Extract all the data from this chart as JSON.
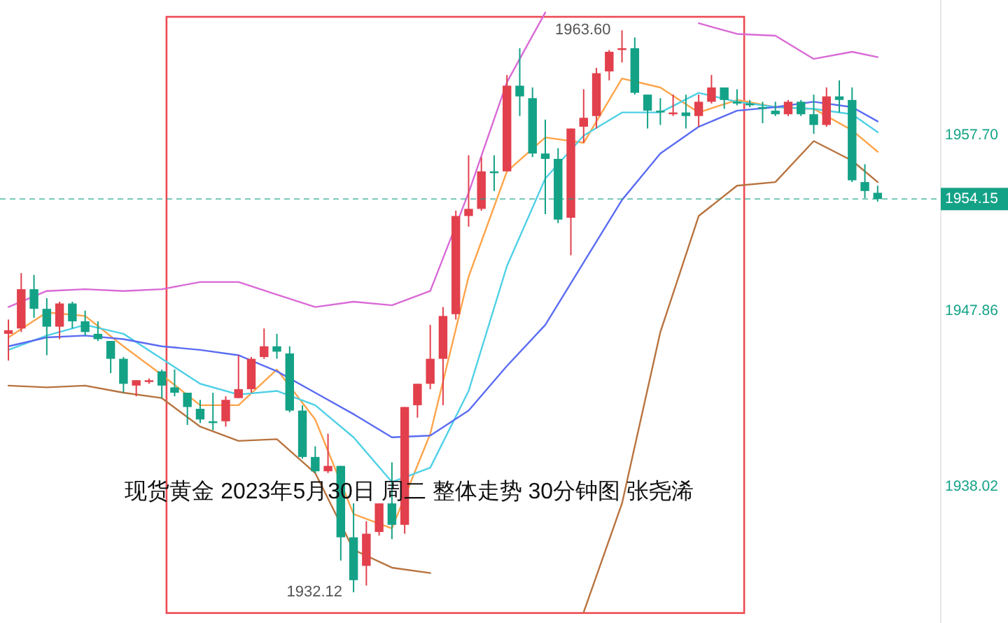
{
  "chart_data": {
    "type": "candlestick",
    "categories": [
      null,
      null,
      null,
      null,
      null,
      null,
      null,
      null,
      null,
      null,
      null,
      null,
      null,
      null,
      null,
      null,
      null,
      null,
      null,
      null,
      null,
      null,
      null,
      null,
      null,
      null,
      null,
      null,
      null,
      null,
      null,
      null,
      null,
      null,
      null,
      null,
      null,
      null,
      null,
      null,
      null,
      null,
      null,
      null,
      null,
      null,
      null,
      null,
      null,
      null,
      null,
      null,
      null,
      null,
      null,
      null,
      null,
      null,
      null,
      null,
      null,
      null,
      null,
      null,
      null,
      null,
      null,
      null,
      null
    ],
    "ohlc": [
      [
        1946.6,
        1947.4,
        1945.1,
        1946.8
      ],
      [
        1946.9,
        1950.0,
        1946.7,
        1949.1
      ],
      [
        1949.1,
        1949.9,
        1947.5,
        1948.0
      ],
      [
        1948.0,
        1948.6,
        1945.4,
        1947.0
      ],
      [
        1947.0,
        1948.4,
        1946.3,
        1948.3
      ],
      [
        1948.3,
        1948.4,
        1946.9,
        1947.3
      ],
      [
        1947.3,
        1947.9,
        1946.5,
        1946.7
      ],
      [
        1946.6,
        1947.3,
        1946.2,
        1946.3
      ],
      [
        1946.2,
        1946.2,
        1944.4,
        1945.2
      ],
      [
        1945.2,
        1945.3,
        1943.3,
        1943.8
      ],
      [
        1943.7,
        1944.0,
        1943.1,
        1944.0
      ],
      [
        1943.9,
        1944.1,
        1943.8,
        1944.0
      ],
      [
        1944.5,
        1944.6,
        1943.0,
        1943.7
      ],
      [
        1943.6,
        1944.6,
        1943.1,
        1943.3
      ],
      [
        1943.3,
        1943.3,
        1941.5,
        1942.5
      ],
      [
        1942.4,
        1942.9,
        1941.6,
        1941.8
      ],
      [
        1941.7,
        1943.3,
        1941.2,
        1941.6
      ],
      [
        1941.7,
        1943.1,
        1941.4,
        1942.9
      ],
      [
        1943.0,
        1945.4,
        1943.0,
        1943.5
      ],
      [
        1943.5,
        1945.3,
        1943.3,
        1945.2
      ],
      [
        1945.3,
        1946.9,
        1945.2,
        1945.9
      ],
      [
        1945.9,
        1946.6,
        1945.2,
        1945.6
      ],
      [
        1945.5,
        1945.9,
        1942.2,
        1942.3
      ],
      [
        1942.3,
        1942.6,
        1939.6,
        1939.7
      ],
      [
        1939.7,
        1940.3,
        1938.8,
        1938.9
      ],
      [
        1938.9,
        1941.0,
        1938.8,
        1939.2
      ],
      [
        1939.2,
        1939.2,
        1933.9,
        1935.2
      ],
      [
        1935.2,
        1937.1,
        1932.12,
        1932.8
      ],
      [
        1933.6,
        1936.1,
        1932.5,
        1935.4
      ],
      [
        1935.5,
        1937.1,
        1935.3,
        1937.1
      ],
      [
        1937.1,
        1939.4,
        1935.1,
        1935.9
      ],
      [
        1935.9,
        1942.5,
        1935.4,
        1942.5
      ],
      [
        1942.6,
        1943.8,
        1941.9,
        1943.8
      ],
      [
        1943.8,
        1947.1,
        1943.5,
        1945.2
      ],
      [
        1945.2,
        1948.1,
        1942.6,
        1947.6
      ],
      [
        1947.7,
        1953.5,
        1947.4,
        1953.2
      ],
      [
        1953.2,
        1956.6,
        1952.6,
        1953.6
      ],
      [
        1953.6,
        1956.5,
        1953.5,
        1955.7
      ],
      [
        1955.7,
        1956.6,
        1954.6,
        1955.6
      ],
      [
        1955.7,
        1961.1,
        1955.7,
        1960.5
      ],
      [
        1960.5,
        1962.6,
        1958.8,
        1959.9
      ],
      [
        1959.8,
        1960.4,
        1956.5,
        1956.7
      ],
      [
        1956.7,
        1958.6,
        1953.3,
        1956.4
      ],
      [
        1956.4,
        1957.0,
        1952.8,
        1953.0
      ],
      [
        1953.1,
        1958.1,
        1951.0,
        1958.1
      ],
      [
        1958.2,
        1960.3,
        1957.3,
        1958.7
      ],
      [
        1958.8,
        1961.5,
        1958.1,
        1961.2
      ],
      [
        1961.3,
        1962.5,
        1960.8,
        1962.4
      ],
      [
        1962.5,
        1963.6,
        1961.8,
        1962.6
      ],
      [
        1962.6,
        1963.2,
        1960.0,
        1960.1
      ],
      [
        1960.0,
        1960.0,
        1958.1,
        1959.1
      ],
      [
        1959.1,
        1959.8,
        1958.3,
        1959.0
      ],
      [
        1958.9,
        1960.0,
        1958.8,
        1959.0
      ],
      [
        1959.0,
        1960.0,
        1958.1,
        1958.8
      ],
      [
        1958.8,
        1960.0,
        1958.2,
        1959.6
      ],
      [
        1959.6,
        1961.1,
        1959.5,
        1960.4
      ],
      [
        1960.4,
        1960.4,
        1959.2,
        1959.7
      ],
      [
        1959.6,
        1960.3,
        1959.4,
        1959.5
      ],
      [
        1959.5,
        1959.7,
        1959.3,
        1959.4
      ],
      [
        1959.3,
        1959.6,
        1958.4,
        1959.2
      ],
      [
        1959.1,
        1959.6,
        1958.8,
        1958.9
      ],
      [
        1958.9,
        1959.7,
        1958.8,
        1959.6
      ],
      [
        1959.6,
        1959.7,
        1958.8,
        1958.9
      ],
      [
        1958.9,
        1960.0,
        1957.8,
        1958.3
      ],
      [
        1958.3,
        1960.4,
        1958.2,
        1959.9
      ],
      [
        1959.9,
        1960.8,
        1959.0,
        1959.7
      ],
      [
        1959.7,
        1960.4,
        1955.1,
        1955.2
      ],
      [
        1955.1,
        1956.1,
        1954.2,
        1954.6
      ],
      [
        1954.5,
        1954.9,
        1954.0,
        1954.15
      ]
    ],
    "colors": [
      "#e2404c",
      "#e2404c",
      "#14a287",
      "#14a287",
      "#e2404c",
      "#14a287",
      "#14a287",
      "#14a287",
      "#14a287",
      "#14a287",
      "#e2404c",
      "#e2404c",
      "#14a287",
      "#14a287",
      "#14a287",
      "#14a287",
      "#14a287",
      "#e2404c",
      "#e2404c",
      "#e2404c",
      "#e2404c",
      "#14a287",
      "#14a287",
      "#14a287",
      "#14a287",
      "#e2404c",
      "#14a287",
      "#14a287",
      "#e2404c",
      "#e2404c",
      "#14a287",
      "#e2404c",
      "#e2404c",
      "#e2404c",
      "#e2404c",
      "#e2404c",
      "#e2404c",
      "#e2404c",
      "#14a287",
      "#e2404c",
      "#14a287",
      "#14a287",
      "#14a287",
      "#14a287",
      "#e2404c",
      "#e2404c",
      "#e2404c",
      "#e2404c",
      "#e2404c",
      "#14a287",
      "#14a287",
      "#14a287",
      "#e2404c",
      "#14a287",
      "#e2404c",
      "#e2404c",
      "#14a287",
      "#14a287",
      "#14a287",
      "#14a287",
      "#14a287",
      "#e2404c",
      "#14a287",
      "#14a287",
      "#e2404c",
      "#14a287",
      "#14a287",
      "#14a287",
      "#14a287"
    ],
    "series": [
      {
        "type": "line",
        "color": "#d96ad6",
        "values": [
          1948.1,
          null,
          null,
          1949.0,
          null,
          null,
          1949.1,
          null,
          null,
          1949.0,
          null,
          null,
          1949.1,
          null,
          null,
          1949.5,
          null,
          null,
          1949.5,
          null,
          null,
          1948.8,
          null,
          null,
          1948.1,
          null,
          null,
          1948.4,
          null,
          null,
          1948.2,
          null,
          null,
          1949.0,
          null,
          null,
          1954.5,
          null,
          null,
          1960.7,
          null,
          null,
          1964.6,
          null,
          null,
          null,
          null,
          null,
          null,
          null,
          null,
          null,
          null,
          null,
          1964.0,
          null,
          null,
          1963.4,
          null,
          null,
          1963.3,
          null,
          null,
          1962.0,
          null,
          null,
          1962.4,
          null,
          1962.1
        ]
      },
      {
        "type": "line",
        "color": "#ffa44a",
        "values": [
          1946.4,
          null,
          null,
          1947.8,
          null,
          null,
          1947.6,
          null,
          null,
          1945.9,
          null,
          null,
          1944.3,
          null,
          null,
          1942.6,
          null,
          null,
          1942.6,
          null,
          null,
          1944.6,
          null,
          null,
          1941.8,
          null,
          null,
          1936.5,
          null,
          null,
          1935.7,
          null,
          null,
          1941.0,
          null,
          null,
          1949.8,
          null,
          null,
          1955.7,
          null,
          null,
          1957.6,
          null,
          null,
          1957.3,
          null,
          null,
          1960.9,
          null,
          null,
          1960.4,
          null,
          null,
          1959.0,
          null,
          null,
          1959.7,
          null,
          null,
          1959.3,
          null,
          null,
          1959.2,
          null,
          null,
          1958.0,
          null,
          1956.8
        ]
      },
      {
        "type": "line",
        "color": "#4fd0e6",
        "values": [
          1945.7,
          null,
          null,
          1946.5,
          null,
          null,
          1947.1,
          null,
          null,
          1946.6,
          null,
          null,
          1945.2,
          null,
          null,
          1943.8,
          null,
          null,
          1943.2,
          null,
          null,
          1943.4,
          null,
          null,
          1942.6,
          null,
          null,
          1940.8,
          null,
          null,
          1938.3,
          null,
          null,
          1939.1,
          null,
          null,
          1943.4,
          null,
          null,
          1950.4,
          null,
          null,
          1955.3,
          null,
          null,
          1957.7,
          null,
          null,
          1959.0,
          null,
          null,
          1959.0,
          null,
          null,
          1960.1,
          null,
          null,
          1959.6,
          null,
          null,
          1959.3,
          null,
          null,
          1959.2,
          null,
          null,
          1958.9,
          null,
          1957.9
        ]
      },
      {
        "type": "line",
        "color": "#5b6cf3",
        "values": [
          1945.9,
          null,
          null,
          1946.4,
          null,
          null,
          1946.5,
          null,
          null,
          1946.3,
          null,
          null,
          1945.9,
          null,
          null,
          1945.7,
          null,
          null,
          1945.4,
          null,
          null,
          1944.5,
          null,
          null,
          1943.3,
          null,
          null,
          1942.1,
          null,
          null,
          1940.8,
          null,
          null,
          1940.9,
          null,
          null,
          1942.3,
          null,
          null,
          1944.8,
          null,
          null,
          1947.1,
          null,
          null,
          1950.6,
          null,
          null,
          1954.1,
          null,
          null,
          1956.7,
          null,
          null,
          1958.2,
          null,
          null,
          1959.1,
          null,
          null,
          1959.3,
          null,
          null,
          1959.6,
          null,
          null,
          1959.3,
          null,
          1958.5
        ]
      },
      {
        "type": "line",
        "color": "#b8733f",
        "values": [
          1943.7,
          null,
          null,
          1943.6,
          null,
          null,
          1943.7,
          null,
          null,
          1943.3,
          null,
          null,
          1943.0,
          null,
          null,
          1941.4,
          null,
          null,
          1940.6,
          null,
          null,
          1940.7,
          null,
          null,
          1938.8,
          null,
          null,
          1934.5,
          null,
          null,
          1933.5,
          null,
          null,
          1933.2,
          null,
          null,
          null,
          null,
          null,
          null,
          null,
          null,
          null,
          null,
          null,
          1931.0,
          null,
          null,
          1937.1,
          null,
          null,
          1946.7,
          null,
          null,
          1953.2,
          null,
          null,
          1954.9,
          null,
          null,
          1955.1,
          null,
          null,
          1957.4,
          null,
          null,
          1956.3,
          null,
          1955.1
        ]
      }
    ],
    "ylim": [
      1930.4,
      1965.3
    ],
    "yticks": [
      {
        "value": 1957.7,
        "label": "1957.70"
      },
      {
        "value": 1947.86,
        "label": "1947.86"
      },
      {
        "value": 1938.02,
        "label": "1938.02"
      }
    ],
    "ref_lines": [
      {
        "axis": "y",
        "value": 1954.15,
        "label": "1954.15",
        "color": "#14a287",
        "line_style": "dashed"
      }
    ],
    "annotations": [
      "现货黄金 2023年5月30日 周二 整体走势 30分钟图 张尧浠",
      "1963.60",
      "1932.12"
    ]
  }
}
